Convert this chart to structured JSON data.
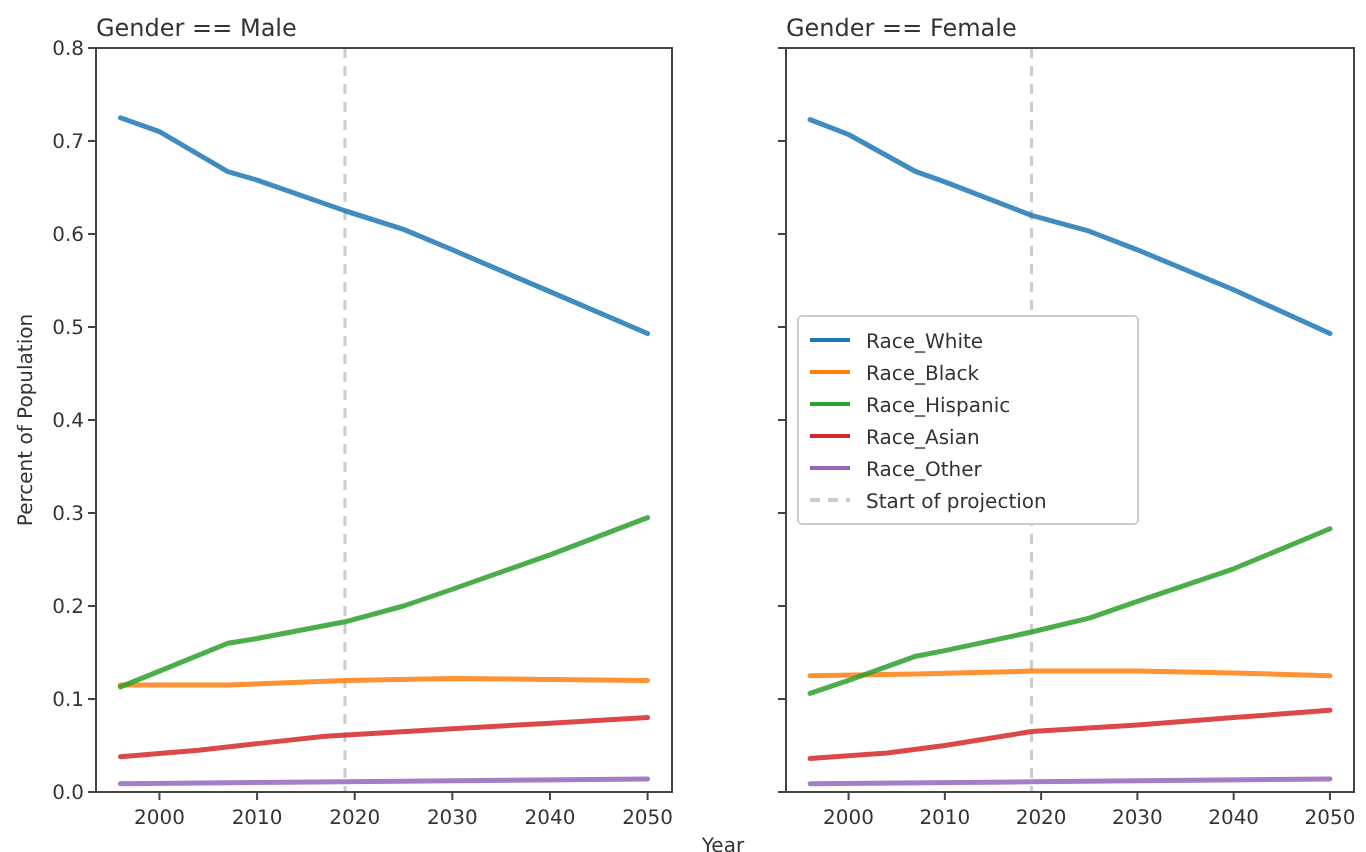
{
  "chart_data": [
    {
      "type": "line",
      "title": "Gender == Male",
      "ylabel": "Percent of Population",
      "xlim": [
        1993.5,
        2052.5
      ],
      "xticks": [
        2000,
        2010,
        2020,
        2030,
        2040,
        2050
      ],
      "ylim": [
        0,
        0.8
      ],
      "yticks": [
        {
          "value": 0,
          "label": "0.0"
        },
        0.1,
        0.2,
        0.3,
        0.4,
        0.5,
        0.6,
        0.7,
        0.8
      ],
      "grid": false,
      "marker": "none",
      "series": [
        {
          "color": "#1f77b4",
          "x": [
            1996,
            2000,
            2007,
            2010,
            2019,
            2025,
            2030,
            2040,
            2050
          ],
          "values": [
            0.725,
            0.71,
            0.667,
            0.658,
            0.625,
            0.605,
            0.583,
            0.538,
            0.493
          ]
        },
        {
          "color": "#ff7f0e",
          "x": [
            1996,
            2007,
            2019,
            2030,
            2040,
            2050
          ],
          "values": [
            0.115,
            0.115,
            0.12,
            0.122,
            0.121,
            0.12
          ]
        },
        {
          "color": "#2ca02c",
          "x": [
            1996,
            2000,
            2007,
            2010,
            2019,
            2025,
            2030,
            2040,
            2050
          ],
          "values": [
            0.113,
            0.13,
            0.16,
            0.165,
            0.183,
            0.2,
            0.218,
            0.255,
            0.295
          ]
        },
        {
          "color": "#d62728",
          "x": [
            1996,
            2004,
            2010,
            2017,
            2030,
            2040,
            2050
          ],
          "values": [
            0.038,
            0.045,
            0.052,
            0.06,
            0.068,
            0.074,
            0.08
          ]
        },
        {
          "color": "#9467bd",
          "x": [
            1996,
            2019,
            2050
          ],
          "values": [
            0.009,
            0.011,
            0.014
          ]
        }
      ],
      "ref_lines": [
        {
          "axis": "x",
          "value": 2019,
          "color": "#cccccc",
          "line_style": "dashed"
        }
      ]
    },
    {
      "type": "line",
      "title": "Gender == Female",
      "xlabel": "Year",
      "xlim": [
        1993.5,
        2052.5
      ],
      "xticks": [
        2000,
        2010,
        2020,
        2030,
        2040,
        2050
      ],
      "ylim": [
        0,
        0.8
      ],
      "yticks": [
        0,
        0.1,
        0.2,
        0.3,
        0.4,
        0.5,
        0.6,
        0.7,
        0.8
      ],
      "tick_labels": "x",
      "grid": false,
      "legend": "center left",
      "marker": "none",
      "series": [
        {
          "name": "Race_White",
          "color": "#1f77b4",
          "x": [
            1996,
            2000,
            2007,
            2010,
            2019,
            2025,
            2030,
            2040,
            2050
          ],
          "values": [
            0.723,
            0.707,
            0.667,
            0.656,
            0.62,
            0.603,
            0.583,
            0.54,
            0.493
          ]
        },
        {
          "name": "Race_Black",
          "color": "#ff7f0e",
          "x": [
            1996,
            2007,
            2019,
            2030,
            2040,
            2050
          ],
          "values": [
            0.125,
            0.127,
            0.13,
            0.13,
            0.128,
            0.125
          ]
        },
        {
          "name": "Race_Hispanic",
          "color": "#2ca02c",
          "x": [
            1996,
            2000,
            2007,
            2010,
            2019,
            2025,
            2030,
            2040,
            2050
          ],
          "values": [
            0.106,
            0.12,
            0.146,
            0.152,
            0.172,
            0.187,
            0.205,
            0.24,
            0.283
          ]
        },
        {
          "name": "Race_Asian",
          "color": "#d62728",
          "x": [
            1996,
            2004,
            2010,
            2019,
            2030,
            2040,
            2050
          ],
          "values": [
            0.036,
            0.042,
            0.05,
            0.065,
            0.072,
            0.08,
            0.088
          ]
        },
        {
          "name": "Race_Other",
          "color": "#9467bd",
          "x": [
            1996,
            2019,
            2050
          ],
          "values": [
            0.009,
            0.011,
            0.014
          ]
        }
      ],
      "ref_lines": [
        {
          "axis": "x",
          "value": 2019,
          "label": "Start of projection",
          "color": "#cccccc",
          "line_style": "dashed"
        }
      ]
    }
  ]
}
